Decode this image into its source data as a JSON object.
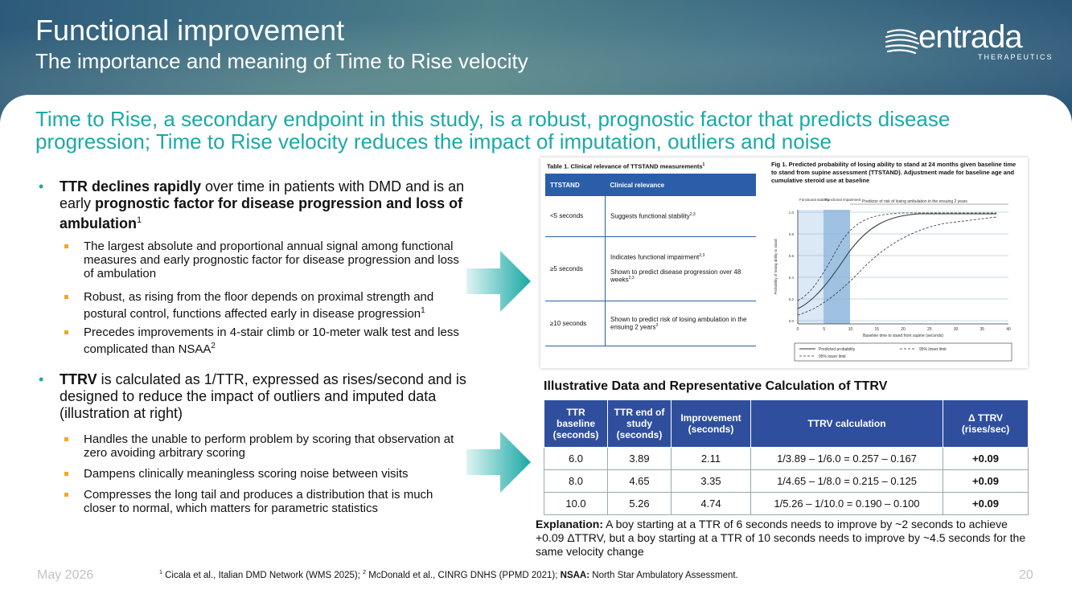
{
  "header": {
    "title": "Functional improvement",
    "subtitle": "The importance and meaning of Time to Rise velocity",
    "logo_word": "entrada",
    "logo_sub": "THERAPEUTICS"
  },
  "headline": "Time to Rise, a secondary endpoint in this study, is a robust, prognostic factor that predicts disease progression; Time to Rise velocity reduces the impact of imputation, outliers and noise",
  "bullets": [
    {
      "pre_bold": "TTR declines rapidly",
      "mid": " over time in patients with DMD and is an early ",
      "bold2": "prognostic factor for disease progression and loss of ambulation",
      "sup": "1",
      "subs": [
        {
          "text": "The largest absolute and proportional annual signal among functional measures and early prognostic factor for disease progression and loss of ambulation",
          "sup": ""
        },
        {
          "text": "Robust, as rising from the floor depends on proximal strength and postural control, functions affected early in disease progression",
          "sup": "1"
        },
        {
          "text": "Precedes improvements in 4-stair climb or 10-meter walk test and less complicated than NSAA",
          "sup": "2"
        }
      ]
    },
    {
      "pre_bold": "TTRV",
      "mid": " is calculated as 1/TTR, expressed as rises/second and is designed to reduce the impact of outliers and imputed data (illustration at right)",
      "subs": [
        {
          "text": "Handles the unable to perform problem by scoring that observation at zero avoiding arbitrary scoring"
        },
        {
          "text": "Dampens clinically meaningless scoring noise between visits"
        },
        {
          "text": "Compresses the long tail and produces a distribution that is much closer to normal, which matters for parametric statistics"
        }
      ]
    }
  ],
  "figure": {
    "table_title": "Table 1. Clinical relevance of TTSTAND measurements",
    "table_title_sup": "1",
    "col1": "TTSTAND",
    "col2": "Clinical relevance",
    "rows": [
      {
        "a": "<5 seconds",
        "b1": "Suggests functional stability",
        "b1sup": "2,3",
        "b2": "",
        "b2sup": ""
      },
      {
        "a": "≥5 seconds",
        "b1": "Indicates functional impairment",
        "b1sup": "2,3",
        "b2": "Shown to predict disease progression over 48 weeks",
        "b2sup": "2,3"
      },
      {
        "a": "≥10 seconds",
        "b1": "Shown to predict risk of losing ambulation in the ensuing 2 years",
        "b1sup": "3",
        "b2": "",
        "b2sup": ""
      }
    ],
    "fig_title": "Fig 1. Predicted probability of losing ability to stand at 24 months given baseline time to stand from supine assessment (TTSTAND). Adjustment made for baseline age and cumulative steroid use at baseline",
    "zone1": "Functional stability",
    "zone2": "Functional impairment",
    "zone3": "Predictor of risk of losing ambulation in the ensuing 2 years",
    "ylabel": "Probability of losing ability to stand",
    "xlabel": "Baseline time to stand from supine (seconds)",
    "xticks": [
      "0",
      "5",
      "10",
      "15",
      "20",
      "25",
      "30",
      "35",
      "40"
    ],
    "yticks": [
      "0.0",
      "0.2",
      "0.4",
      "0.6",
      "0.8",
      "1.0"
    ],
    "legend1": "Predicted probability",
    "legend2": "95% lower limit",
    "legend3": "95% lower limit"
  },
  "calc": {
    "caption": "Illustrative Data and Representative Calculation of TTRV",
    "headers": [
      "TTR baseline (seconds)",
      "TTR end of study (seconds)",
      "Improvement (seconds)",
      "TTRV calculation",
      "Δ TTRV (rises/sec)"
    ],
    "rows": [
      [
        "6.0",
        "3.89",
        "2.11",
        "1/3.89 – 1/6.0 = 0.257 – 0.167",
        "+0.09"
      ],
      [
        "8.0",
        "4.65",
        "3.35",
        "1/4.65 – 1/8.0 = 0.215 – 0.125",
        "+0.09"
      ],
      [
        "10.0",
        "5.26",
        "4.74",
        "1/5.26 – 1/10.0 = 0.190 – 0.100",
        "+0.09"
      ]
    ]
  },
  "explanation": {
    "label": "Explanation:",
    "text": " A boy starting at a TTR of 6 seconds needs to improve by ~2 seconds to achieve +0.09 ΔTTRV, but a boy starting at a TTR of 10 seconds needs to improve by ~4.5 seconds for the same velocity change"
  },
  "footer": {
    "date": "May 2026",
    "page": "20",
    "ref1_sup": "1",
    "ref1": " Cicala et al., Italian DMD Network (WMS 2025); ",
    "ref2_sup": "2",
    "ref2": " McDonald et al., CINRG DNHS (PPMD 2021); ",
    "nsaa_label": "NSAA:",
    "nsaa": " North Star Ambulatory Assessment."
  },
  "colors": {
    "accent": "#1ba9a6",
    "table_header": "#2f4f9e",
    "bullet_square": "#f5a623"
  }
}
